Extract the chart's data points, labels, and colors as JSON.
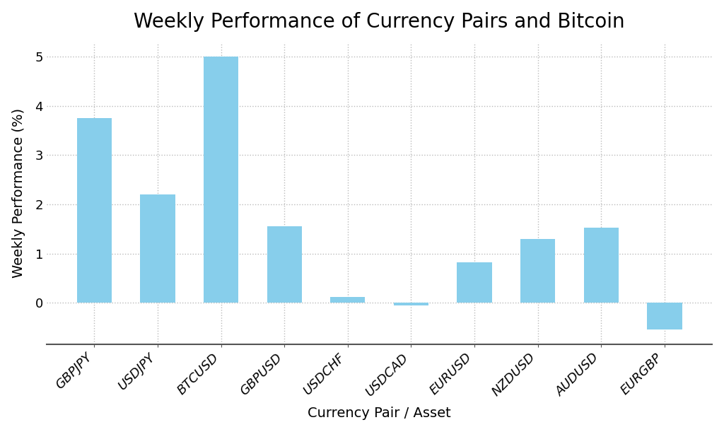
{
  "title": "Weekly Performance of Currency Pairs and Bitcoin",
  "xlabel": "Currency Pair / Asset",
  "ylabel": "Weekly Performance (%)",
  "categories": [
    "GBPJPY",
    "USDJPY",
    "BTCUSD",
    "GBPUSD",
    "USDCHF",
    "USDCAD",
    "EURUSD",
    "NZDUSD",
    "AUDUSD",
    "EURGBP"
  ],
  "values": [
    3.75,
    2.2,
    5.0,
    1.55,
    0.12,
    -0.05,
    0.82,
    1.3,
    1.52,
    -0.55
  ],
  "bar_color": "#87CEEB",
  "background_color": "#FFFFFF",
  "grid_color": "#BBBBBB",
  "ylim": [
    -0.85,
    5.3
  ],
  "yticks": [
    0,
    1,
    2,
    3,
    4,
    5
  ],
  "title_fontsize": 20,
  "label_fontsize": 14,
  "tick_fontsize": 13,
  "bar_width": 0.55
}
